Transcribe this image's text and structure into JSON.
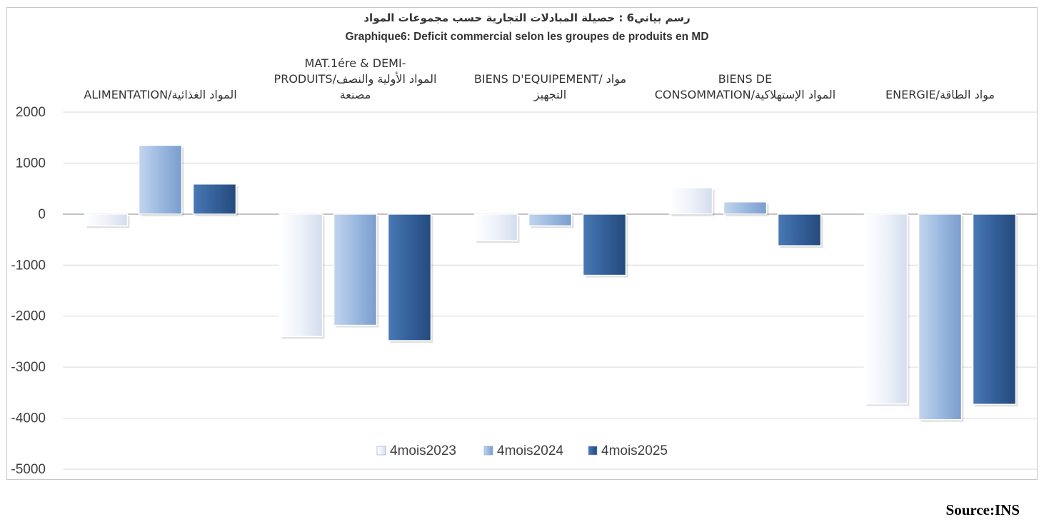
{
  "chart_data": {
    "type": "bar",
    "title": "رسم بياني6 : حصيلة المبادلات التجارية حسب مجموعات المواد",
    "subtitle": "Graphique6: Deficit commercial selon les groupes de produits en MD",
    "categories": [
      [
        "ALIMENTATION/المواد الغذائية"
      ],
      [
        "MAT.1ére & DEMI-",
        "PRODUITS/المواد الأولية والنصف",
        "مصنعة"
      ],
      [
        "BIENS D'EQUIPEMENT/ مواد",
        "التجهيز"
      ],
      [
        "BIENS DE",
        "CONSOMMATION/المواد الإستهلاكية"
      ],
      [
        "ENERGIE/مواد الطاقة"
      ]
    ],
    "series": [
      {
        "name": "4mois2023",
        "color": "#e9eef8",
        "values": [
          -230,
          -2400,
          -520,
          520,
          -3720
        ]
      },
      {
        "name": "4mois2024",
        "color": "#9bb9e0",
        "values": [
          1350,
          -2180,
          -230,
          240,
          -4030
        ]
      },
      {
        "name": "4mois2025",
        "color": "#34609a",
        "values": [
          590,
          -2480,
          -1200,
          -620,
          -3730
        ]
      }
    ],
    "ylim": [
      -5000,
      2000
    ],
    "yticks": [
      2000,
      1000,
      0,
      -1000,
      -2000,
      -3000,
      -4000,
      -5000
    ],
    "ytick_labels": [
      "2000",
      "1000",
      "0",
      "-1000",
      "-2000",
      "-3000",
      "-4000",
      "-5000"
    ],
    "grid": true,
    "legend_position": "bottom-center"
  },
  "source": "Source:INS"
}
